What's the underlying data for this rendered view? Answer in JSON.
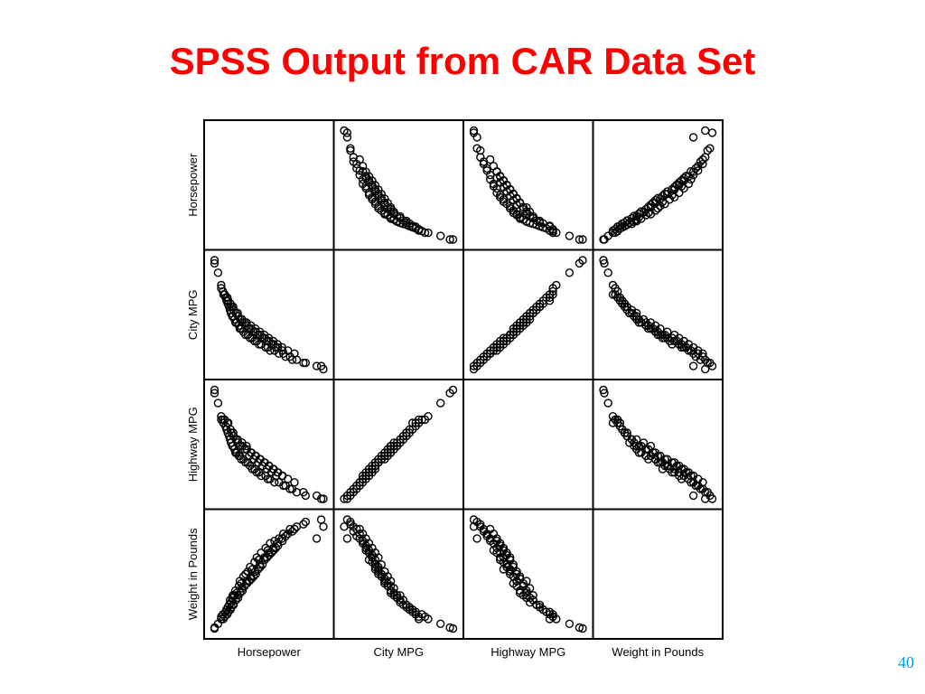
{
  "slide": {
    "title": "SPSS Output from CAR Data Set",
    "title_color": "#ff0000",
    "page_number": "40",
    "page_number_color": "#00a0e0"
  },
  "chart_data": {
    "type": "scatter",
    "subtype": "scatterplot-matrix",
    "variables": [
      "Horsepower",
      "City MPG",
      "Highway MPG",
      "Weight in Pounds"
    ],
    "row_labels": [
      "Horsepower",
      "City MPG",
      "Highway MPG",
      "Weight in Pounds"
    ],
    "column_labels": [
      "Horsepower",
      "City MPG",
      "Highway MPG",
      "Weight in Pounds"
    ],
    "diagonal": "empty",
    "marker": "open-circle",
    "axis_ticks": "none",
    "grid": false,
    "point_color": "#000000",
    "observations": [
      [
        55,
        46,
        50,
        1800
      ],
      [
        55,
        45,
        49,
        1820
      ],
      [
        63,
        42,
        46,
        1900
      ],
      [
        70,
        38,
        42,
        2000
      ],
      [
        70,
        37,
        41,
        2050
      ],
      [
        74,
        36,
        41,
        2100
      ],
      [
        75,
        35,
        40,
        2000
      ],
      [
        80,
        34,
        39,
        2150
      ],
      [
        82,
        33,
        38,
        2200
      ],
      [
        85,
        32,
        37,
        2250
      ],
      [
        88,
        31,
        36,
        2300
      ],
      [
        90,
        30,
        35,
        2400
      ],
      [
        92,
        29,
        34,
        2350
      ],
      [
        95,
        28,
        33,
        2450
      ],
      [
        96,
        28,
        33,
        2500
      ],
      [
        100,
        27,
        32,
        2500
      ],
      [
        102,
        26,
        31,
        2600
      ],
      [
        105,
        26,
        31,
        2550
      ],
      [
        110,
        25,
        30,
        2700
      ],
      [
        112,
        24,
        30,
        2800
      ],
      [
        115,
        24,
        29,
        2750
      ],
      [
        120,
        23,
        29,
        2900
      ],
      [
        125,
        22,
        28,
        2950
      ],
      [
        130,
        22,
        28,
        3000
      ],
      [
        135,
        21,
        27,
        3100
      ],
      [
        140,
        21,
        26,
        3050
      ],
      [
        145,
        20,
        26,
        3200
      ],
      [
        150,
        20,
        25,
        3300
      ],
      [
        155,
        19,
        25,
        3250
      ],
      [
        160,
        19,
        24,
        3400
      ],
      [
        170,
        18,
        24,
        3500
      ],
      [
        175,
        18,
        23,
        3450
      ],
      [
        180,
        17,
        23,
        3600
      ],
      [
        190,
        17,
        22,
        3650
      ],
      [
        200,
        16,
        22,
        3700
      ],
      [
        210,
        16,
        21,
        3800
      ],
      [
        215,
        15,
        21,
        3750
      ],
      [
        225,
        15,
        20,
        3900
      ],
      [
        230,
        14,
        20,
        3850
      ],
      [
        240,
        14,
        19,
        3950
      ],
      [
        255,
        13,
        19,
        4000
      ],
      [
        260,
        13,
        18,
        4050
      ],
      [
        285,
        12,
        18,
        3700
      ],
      [
        295,
        12,
        17,
        4100
      ],
      [
        300,
        11,
        17,
        3950
      ],
      [
        98,
        30,
        36,
        2300
      ],
      [
        108,
        28,
        34,
        2450
      ],
      [
        118,
        26,
        33,
        2600
      ],
      [
        128,
        25,
        32,
        2750
      ],
      [
        138,
        24,
        31,
        2850
      ],
      [
        148,
        23,
        30,
        2950
      ],
      [
        158,
        22,
        29,
        3100
      ],
      [
        168,
        21,
        28,
        3250
      ],
      [
        178,
        20,
        27,
        3350
      ],
      [
        188,
        19,
        26,
        3450
      ],
      [
        198,
        18,
        25,
        3550
      ],
      [
        208,
        17,
        24,
        3650
      ],
      [
        86,
        33,
        40,
        2150
      ],
      [
        93,
        31,
        37,
        2250
      ],
      [
        103,
        29,
        35,
        2400
      ],
      [
        113,
        27,
        33,
        2550
      ],
      [
        123,
        26,
        32,
        2700
      ],
      [
        133,
        24,
        30,
        2800
      ],
      [
        143,
        23,
        29,
        2900
      ],
      [
        153,
        22,
        28,
        3050
      ],
      [
        163,
        21,
        27,
        3150
      ],
      [
        173,
        20,
        26,
        3300
      ],
      [
        183,
        19,
        25,
        3400
      ],
      [
        193,
        18,
        24,
        3500
      ],
      [
        78,
        35,
        41,
        2050
      ],
      [
        84,
        34,
        40,
        2100
      ],
      [
        91,
        32,
        38,
        2200
      ],
      [
        97,
        31,
        37,
        2300
      ],
      [
        107,
        29,
        35,
        2500
      ],
      [
        117,
        27,
        34,
        2650
      ],
      [
        127,
        26,
        33,
        2800
      ],
      [
        137,
        25,
        31,
        2900
      ],
      [
        147,
        24,
        30,
        3000
      ],
      [
        157,
        23,
        29,
        3150
      ],
      [
        167,
        22,
        28,
        3300
      ],
      [
        177,
        21,
        27,
        3400
      ],
      [
        187,
        20,
        26,
        3500
      ],
      [
        197,
        19,
        25,
        3600
      ],
      [
        207,
        18,
        24,
        3700
      ],
      [
        220,
        17,
        23,
        3800
      ],
      [
        235,
        16,
        22,
        3900
      ]
    ]
  }
}
